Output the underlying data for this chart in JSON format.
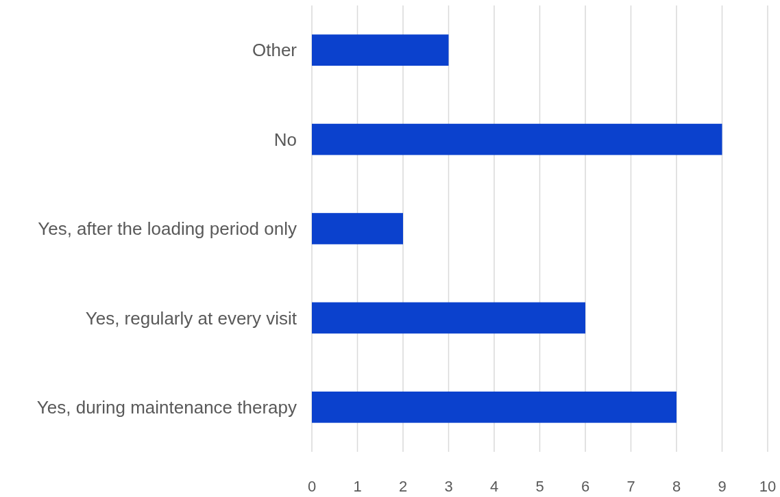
{
  "chart_data": {
    "type": "bar",
    "orientation": "horizontal",
    "categories": [
      "Other",
      "No",
      "Yes, after the loading period only",
      "Yes, regularly at every visit",
      "Yes, during maintenance therapy"
    ],
    "values": [
      3,
      9,
      2,
      6,
      8
    ],
    "color": "#0b41cd",
    "xlim": [
      0,
      10
    ],
    "xticks": [
      0,
      1,
      2,
      3,
      4,
      5,
      6,
      7,
      8,
      9,
      10
    ],
    "grid": "x"
  }
}
